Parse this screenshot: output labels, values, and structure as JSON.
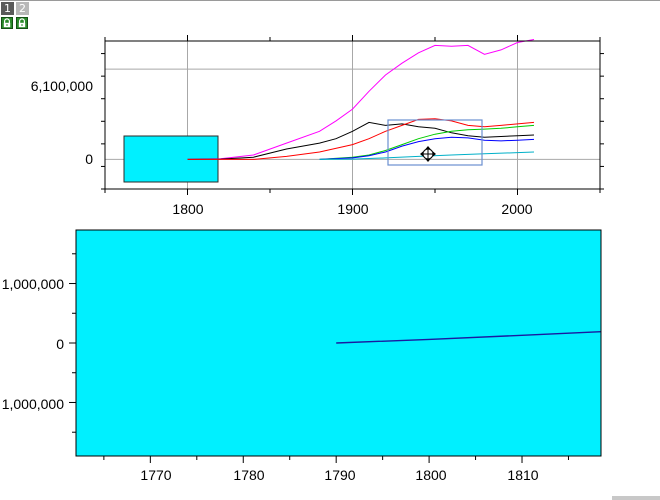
{
  "workbook_tabs": [
    {
      "label": "1",
      "active": true
    },
    {
      "label": "2",
      "active": false
    }
  ],
  "lock_icons": [
    "lock-icon",
    "lock-icon"
  ],
  "colors": {
    "fill_region": "#00f0ff",
    "selection_box": "#6a8fd0",
    "grid": "#a8a8a8"
  },
  "chart_data": [
    {
      "type": "line",
      "title": "",
      "xlabel": "",
      "ylabel": "",
      "x_ticks": [
        "1800",
        "1900",
        "2000"
      ],
      "y_ticks": [
        "0",
        "6,100,000"
      ],
      "xlim": [
        1750,
        2050
      ],
      "ylim": [
        -2000000,
        8000000
      ],
      "grid": true,
      "series": [
        {
          "color": "#ff00ff",
          "x": [
            1800,
            1820,
            1840,
            1860,
            1880,
            1890,
            1900,
            1910,
            1920,
            1930,
            1940,
            1950,
            1960,
            1970,
            1980,
            1990,
            2000,
            2010
          ],
          "values": [
            0,
            50000,
            300000,
            1100000,
            1900000,
            2600000,
            3400000,
            4600000,
            5700000,
            6500000,
            7200000,
            7700000,
            7650000,
            7700000,
            7100000,
            7400000,
            7900000,
            8100000
          ]
        },
        {
          "color": "#000000",
          "x": [
            1800,
            1820,
            1840,
            1860,
            1880,
            1890,
            1900,
            1910,
            1920,
            1930,
            1940,
            1950,
            1960,
            1970,
            1980,
            1990,
            2000,
            2010
          ],
          "values": [
            0,
            20000,
            150000,
            700000,
            1100000,
            1400000,
            1900000,
            2500000,
            2300000,
            2400000,
            2200000,
            2100000,
            1800000,
            1600000,
            1500000,
            1550000,
            1600000,
            1650000
          ]
        },
        {
          "color": "#ff0000",
          "x": [
            1800,
            1840,
            1860,
            1880,
            1900,
            1910,
            1920,
            1930,
            1940,
            1950,
            1960,
            1970,
            1980,
            1990,
            2000,
            2010
          ],
          "values": [
            0,
            0,
            200000,
            500000,
            1000000,
            1400000,
            1900000,
            2300000,
            2700000,
            2750000,
            2600000,
            2300000,
            2200000,
            2300000,
            2400000,
            2500000
          ]
        },
        {
          "color": "#00cc00",
          "x": [
            1880,
            1900,
            1910,
            1920,
            1930,
            1940,
            1950,
            1960,
            1970,
            1980,
            1990,
            2000,
            2010
          ],
          "values": [
            0,
            150000,
            300000,
            600000,
            1000000,
            1400000,
            1700000,
            1900000,
            2000000,
            2050000,
            2100000,
            2200000,
            2300000
          ]
        },
        {
          "color": "#0000ff",
          "x": [
            1880,
            1900,
            1910,
            1920,
            1930,
            1940,
            1950,
            1960,
            1970,
            1980,
            1990,
            2000,
            2010
          ],
          "values": [
            0,
            100000,
            250000,
            500000,
            900000,
            1200000,
            1400000,
            1500000,
            1450000,
            1300000,
            1250000,
            1300000,
            1350000
          ]
        },
        {
          "color": "#00b0c8",
          "x": [
            1880,
            1900,
            1920,
            1940,
            1960,
            1980,
            2000,
            2010
          ],
          "values": [
            0,
            20000,
            100000,
            200000,
            300000,
            380000,
            460000,
            500000
          ]
        }
      ]
    },
    {
      "type": "line",
      "title": "",
      "xlabel": "",
      "ylabel": "",
      "x_ticks": [
        "1770",
        "1780",
        "1790",
        "1800",
        "1810"
      ],
      "y_ticks": [
        "1,000,000",
        "0",
        "1,000,000"
      ],
      "xlim": [
        1762,
        1818.5
      ],
      "ylim": [
        -1900000,
        1900000
      ],
      "grid": false,
      "series": [
        {
          "color": "#1a1aa0",
          "x": [
            1790,
            1800,
            1810,
            1818.5
          ],
          "values": [
            0,
            60000,
            130000,
            190000
          ]
        }
      ]
    }
  ]
}
